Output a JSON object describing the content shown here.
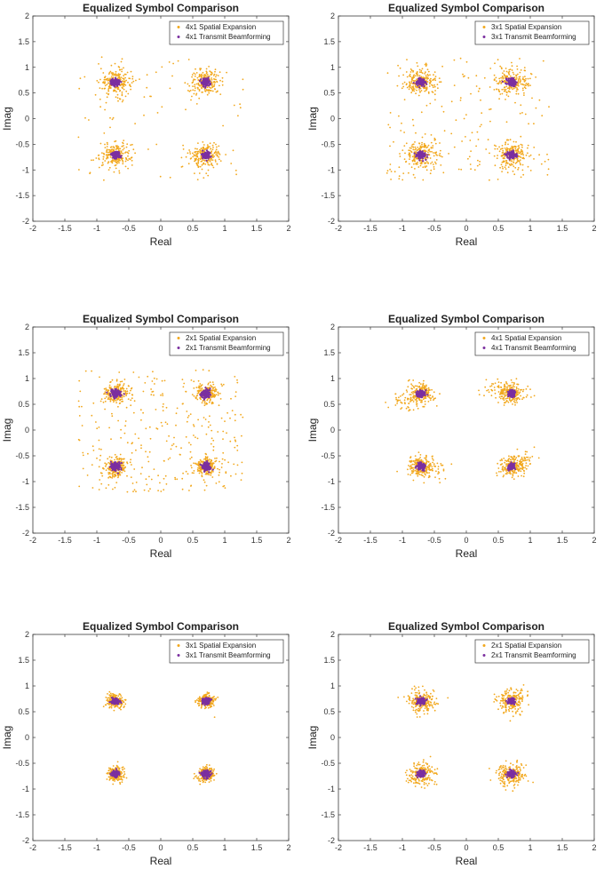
{
  "colors": {
    "spatial_expansion": "#f2a81d",
    "transmit_beamforming": "#7b2fa0",
    "axes": "#3a3a3a"
  },
  "chart_data": [
    {
      "type": "scatter",
      "title": "Equalized Symbol Comparison",
      "xlabel": "Real",
      "ylabel": "Imag",
      "xlim": [
        -2,
        2
      ],
      "ylim": [
        -2,
        2
      ],
      "xticks": [
        "-2",
        "-1.5",
        "-1",
        "-0.5",
        "0",
        "0.5",
        "1",
        "1.5",
        "2"
      ],
      "yticks": [
        "2",
        "1.5",
        "1",
        "0.5",
        "0",
        "-0.5",
        "-1",
        "-1.5",
        "-2"
      ],
      "grid": false,
      "legend_position": "top-right",
      "constellation_points": [
        [
          -0.707,
          0.707
        ],
        [
          0.707,
          0.707
        ],
        [
          -0.707,
          -0.707
        ],
        [
          0.707,
          -0.707
        ]
      ],
      "series": [
        {
          "name": "4x1 Spatial Expansion",
          "spread": 0.12,
          "scattered_fraction": 0.12
        },
        {
          "name": "4x1 Transmit Beamforming",
          "spread": 0.035,
          "scattered_fraction": 0
        }
      ]
    },
    {
      "type": "scatter",
      "title": "Equalized Symbol Comparison",
      "xlabel": "Real",
      "ylabel": "Imag",
      "xlim": [
        -2,
        2
      ],
      "ylim": [
        -2,
        2
      ],
      "xticks": [
        "-2",
        "-1.5",
        "-1",
        "-0.5",
        "0",
        "0.5",
        "1",
        "1.5",
        "2"
      ],
      "yticks": [
        "2",
        "1.5",
        "1",
        "0.5",
        "0",
        "-0.5",
        "-1",
        "-1.5",
        "-2"
      ],
      "grid": false,
      "legend_position": "top-right",
      "constellation_points": [
        [
          -0.707,
          0.707
        ],
        [
          0.707,
          0.707
        ],
        [
          -0.707,
          -0.707
        ],
        [
          0.707,
          -0.707
        ]
      ],
      "series": [
        {
          "name": "3x1 Spatial Expansion",
          "spread": 0.12,
          "scattered_fraction": 0.25
        },
        {
          "name": "3x1 Transmit Beamforming",
          "spread": 0.035,
          "scattered_fraction": 0
        }
      ]
    },
    {
      "type": "scatter",
      "title": "Equalized Symbol Comparison",
      "xlabel": "Real",
      "ylabel": "Imag",
      "xlim": [
        -2,
        2
      ],
      "ylim": [
        -2,
        2
      ],
      "xticks": [
        "-2",
        "-1.5",
        "-1",
        "-0.5",
        "0",
        "0.5",
        "1",
        "1.5",
        "2"
      ],
      "yticks": [
        "2",
        "1.5",
        "1",
        "0.5",
        "0",
        "-0.5",
        "-1",
        "-1.5",
        "-2"
      ],
      "grid": false,
      "legend_position": "top-right",
      "constellation_points": [
        [
          -0.707,
          0.707
        ],
        [
          0.707,
          0.707
        ],
        [
          -0.707,
          -0.707
        ],
        [
          0.707,
          -0.707
        ]
      ],
      "series": [
        {
          "name": "2x1 Spatial Expansion",
          "spread": 0.09,
          "scattered_fraction": 0.4
        },
        {
          "name": "2x1 Transmit Beamforming",
          "spread": 0.04,
          "scattered_fraction": 0
        }
      ]
    },
    {
      "type": "scatter",
      "title": "Equalized Symbol Comparison",
      "xlabel": "Real",
      "ylabel": "Imag",
      "xlim": [
        -2,
        2
      ],
      "ylim": [
        -2,
        2
      ],
      "xticks": [
        "-2",
        "-1.5",
        "-1",
        "-0.5",
        "0",
        "0.5",
        "1",
        "1.5",
        "2"
      ],
      "yticks": [
        "2",
        "1.5",
        "1",
        "0.5",
        "0",
        "-0.5",
        "-1",
        "-1.5",
        "-2"
      ],
      "grid": false,
      "legend_position": "top-right",
      "constellation_points": [
        [
          -0.707,
          0.707
        ],
        [
          0.707,
          0.707
        ],
        [
          -0.707,
          -0.707
        ],
        [
          0.707,
          -0.707
        ]
      ],
      "series": [
        {
          "name": "4x1 Spatial Expansion",
          "spread": 0.1,
          "scattered_fraction": 0,
          "offset_lobes": [
            [
              -0.95,
              0.55
            ],
            [
              0.45,
              0.8
            ],
            [
              -0.5,
              -0.8
            ],
            [
              0.9,
              -0.55
            ]
          ]
        },
        {
          "name": "4x1 Transmit Beamforming",
          "spread": 0.03,
          "scattered_fraction": 0
        }
      ]
    },
    {
      "type": "scatter",
      "title": "Equalized Symbol Comparison",
      "xlabel": "Real",
      "ylabel": "Imag",
      "xlim": [
        -2,
        2
      ],
      "ylim": [
        -2,
        2
      ],
      "xticks": [
        "-2",
        "-1.5",
        "-1",
        "-0.5",
        "0",
        "0.5",
        "1",
        "1.5",
        "2"
      ],
      "yticks": [
        "2",
        "1.5",
        "1",
        "0.5",
        "0",
        "-0.5",
        "-1",
        "-1.5",
        "-2"
      ],
      "grid": false,
      "legend_position": "top-right",
      "constellation_points": [
        [
          -0.707,
          0.707
        ],
        [
          0.707,
          0.707
        ],
        [
          -0.707,
          -0.707
        ],
        [
          0.707,
          -0.707
        ]
      ],
      "series": [
        {
          "name": "3x1 Spatial Expansion",
          "spread": 0.07,
          "scattered_fraction": 0
        },
        {
          "name": "3x1 Transmit Beamforming",
          "spread": 0.03,
          "scattered_fraction": 0
        }
      ]
    },
    {
      "type": "scatter",
      "title": "Equalized Symbol Comparison",
      "xlabel": "Real",
      "ylabel": "Imag",
      "xlim": [
        -2,
        2
      ],
      "ylim": [
        -2,
        2
      ],
      "xticks": [
        "-2",
        "-1.5",
        "-1",
        "-0.5",
        "0",
        "0.5",
        "1",
        "1.5",
        "2"
      ],
      "yticks": [
        "2",
        "1.5",
        "1",
        "0.5",
        "0",
        "-0.5",
        "-1",
        "-1.5",
        "-2"
      ],
      "grid": false,
      "legend_position": "top-right",
      "constellation_points": [
        [
          -0.707,
          0.707
        ],
        [
          0.707,
          0.707
        ],
        [
          -0.707,
          -0.707
        ],
        [
          0.707,
          -0.707
        ]
      ],
      "series": [
        {
          "name": "2x1 Spatial Expansion",
          "spread": 0.11,
          "scattered_fraction": 0
        },
        {
          "name": "2x1 Transmit Beamforming",
          "spread": 0.03,
          "scattered_fraction": 0
        }
      ]
    }
  ]
}
